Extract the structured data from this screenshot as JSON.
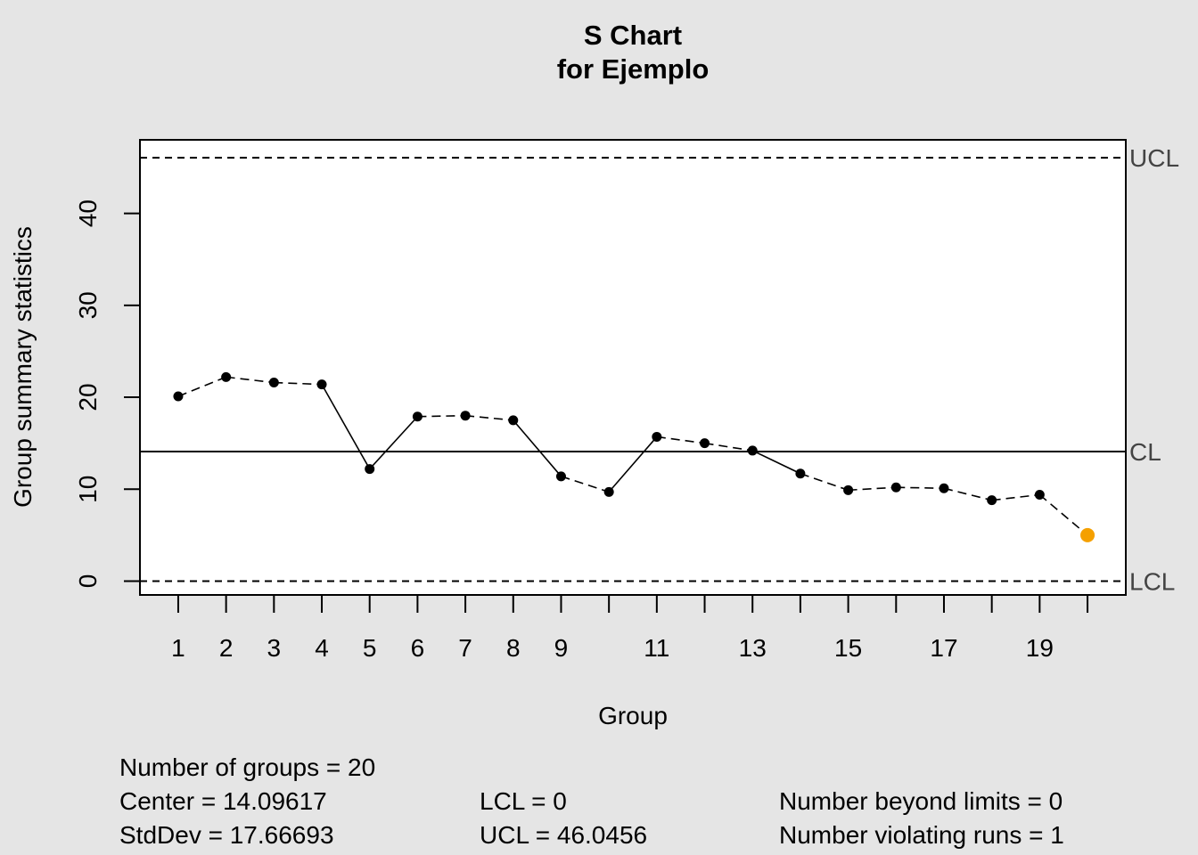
{
  "chart_data": {
    "type": "line",
    "title": "S Chart",
    "subtitle": "for Ejemplo",
    "xlabel": "Group",
    "ylabel": "Group summary statistics",
    "x": [
      1,
      2,
      3,
      4,
      5,
      6,
      7,
      8,
      9,
      10,
      11,
      12,
      13,
      14,
      15,
      16,
      17,
      18,
      19,
      20
    ],
    "values": [
      20.1,
      22.2,
      21.6,
      21.4,
      12.2,
      17.9,
      18.0,
      17.5,
      11.4,
      9.7,
      15.7,
      15.0,
      14.2,
      11.7,
      9.9,
      10.2,
      10.1,
      8.8,
      9.4,
      5.0
    ],
    "highlight_index": 19,
    "xticks": [
      1,
      2,
      3,
      4,
      5,
      6,
      7,
      8,
      9,
      10,
      11,
      12,
      13,
      14,
      15,
      16,
      17,
      18,
      19,
      20
    ],
    "xtick_labels": [
      "1",
      "2",
      "3",
      "4",
      "5",
      "6",
      "7",
      "8",
      "9",
      "",
      "11",
      "",
      "13",
      "",
      "15",
      "",
      "17",
      "",
      "19",
      ""
    ],
    "yticks": [
      0,
      10,
      20,
      30,
      40
    ],
    "ytick_labels": [
      "0",
      "10",
      "20",
      "30",
      "40"
    ],
    "xlim": [
      0.2,
      20.8
    ],
    "ylim": [
      -1.5,
      48
    ],
    "lines": [
      {
        "label": "UCL",
        "value": 46.0456,
        "style": "dashed"
      },
      {
        "label": "CL",
        "value": 14.09617,
        "style": "solid"
      },
      {
        "label": "LCL",
        "value": 0,
        "style": "dashed"
      }
    ],
    "colors": {
      "background": "#e5e5e5",
      "plot_area": "#ffffff",
      "points": "#000000",
      "violation_point": "#f5a000",
      "limit_label": "#444444"
    }
  },
  "stats": {
    "groups": "Number of groups = 20",
    "center": "Center = 14.09617",
    "stddev": "StdDev = 17.66693",
    "lcl": "LCL = 0",
    "ucl": "UCL = 46.0456",
    "beyond": "Number beyond limits = 0",
    "violating": "Number violating runs = 1"
  }
}
